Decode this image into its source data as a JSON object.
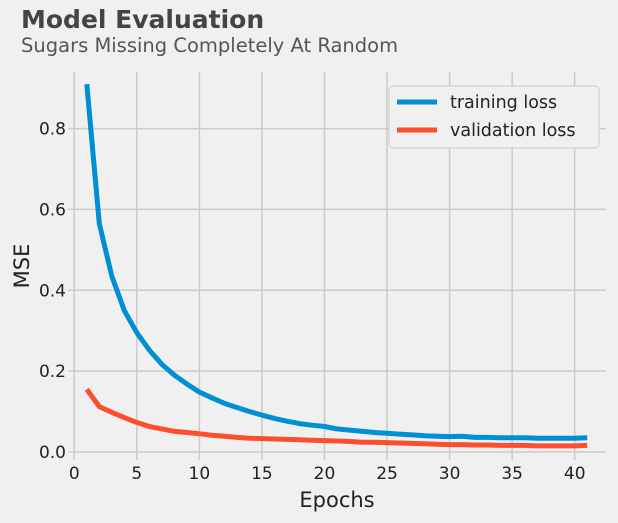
{
  "chart_data": {
    "type": "line",
    "title": "Model Evaluation",
    "subtitle": "Sugars Missing Completely At Random",
    "xlabel": "Epochs",
    "ylabel": "MSE",
    "xlim": [
      -0.5,
      42.5
    ],
    "ylim": [
      -0.02,
      0.94
    ],
    "xticks": [
      0,
      5,
      10,
      15,
      20,
      25,
      30,
      35,
      40
    ],
    "yticks": [
      0.0,
      0.2,
      0.4,
      0.6,
      0.8
    ],
    "ytick_labels": [
      "0.0",
      "0.2",
      "0.4",
      "0.6",
      "0.8"
    ],
    "grid": true,
    "legend_position": "top-right",
    "x": [
      1,
      2,
      3,
      4,
      5,
      6,
      7,
      8,
      9,
      10,
      11,
      12,
      13,
      14,
      15,
      16,
      17,
      18,
      19,
      20,
      21,
      22,
      23,
      24,
      25,
      26,
      27,
      28,
      29,
      30,
      31,
      32,
      33,
      34,
      35,
      36,
      37,
      38,
      39,
      40,
      41
    ],
    "series": [
      {
        "name": "training loss",
        "color": "#008fd5",
        "values": [
          0.91,
          0.565,
          0.435,
          0.35,
          0.295,
          0.252,
          0.217,
          0.19,
          0.168,
          0.148,
          0.134,
          0.12,
          0.11,
          0.1,
          0.091,
          0.083,
          0.076,
          0.07,
          0.066,
          0.063,
          0.057,
          0.054,
          0.051,
          0.048,
          0.046,
          0.044,
          0.042,
          0.04,
          0.039,
          0.038,
          0.039,
          0.036,
          0.036,
          0.035,
          0.035,
          0.035,
          0.034,
          0.034,
          0.034,
          0.034,
          0.035
        ]
      },
      {
        "name": "validation loss",
        "color": "#fc4f30",
        "values": [
          0.155,
          0.112,
          0.098,
          0.085,
          0.073,
          0.063,
          0.057,
          0.051,
          0.048,
          0.045,
          0.041,
          0.039,
          0.036,
          0.034,
          0.033,
          0.032,
          0.031,
          0.03,
          0.029,
          0.028,
          0.027,
          0.026,
          0.024,
          0.024,
          0.023,
          0.022,
          0.021,
          0.02,
          0.019,
          0.018,
          0.018,
          0.017,
          0.017,
          0.016,
          0.016,
          0.016,
          0.015,
          0.015,
          0.015,
          0.015,
          0.016
        ]
      }
    ]
  }
}
